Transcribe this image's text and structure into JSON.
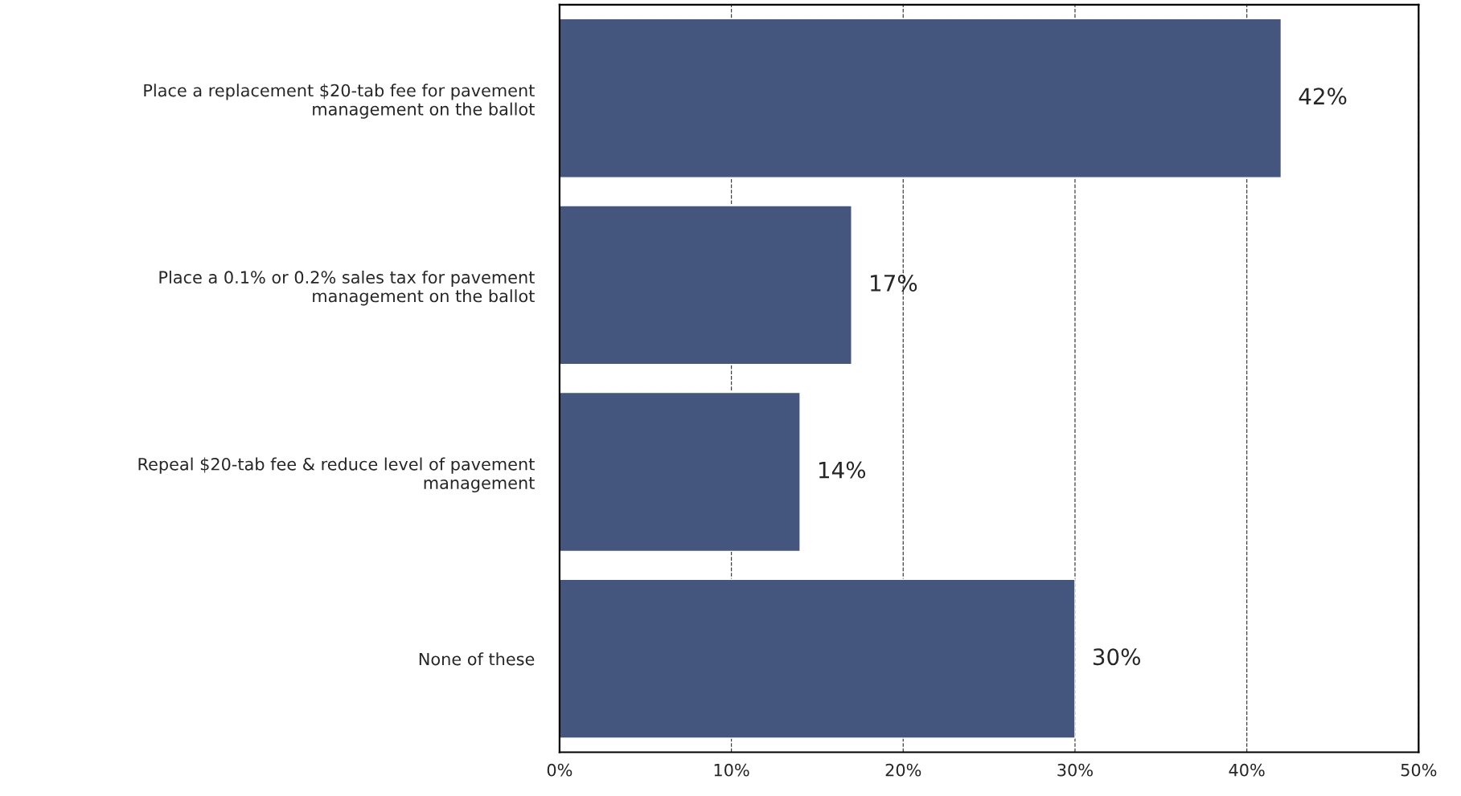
{
  "chart_data": {
    "type": "bar",
    "orientation": "horizontal",
    "categories": [
      "Place a replacement $20-tab fee for pavement\nmanagement on the ballot",
      "Place a 0.1% or 0.2% sales tax for pavement\nmanagement on the ballot",
      "Repeal $20-tab fee & reduce level of pavement\nmanagement",
      "None of these"
    ],
    "values": [
      42,
      17,
      14,
      30
    ],
    "color": "#44557e",
    "xlim": [
      0,
      50
    ],
    "xticks": [
      {
        "value": 0,
        "label": "0%"
      },
      {
        "value": 10,
        "label": "10%"
      },
      {
        "value": 20,
        "label": "20%"
      },
      {
        "value": 30,
        "label": "30%"
      },
      {
        "value": 40,
        "label": "40%"
      },
      {
        "value": 50,
        "label": "50%"
      }
    ],
    "grid": "x",
    "line_style": "dashed",
    "data_labels": true,
    "value_labels": [
      "42%",
      "17%",
      "14%",
      "30%"
    ]
  }
}
